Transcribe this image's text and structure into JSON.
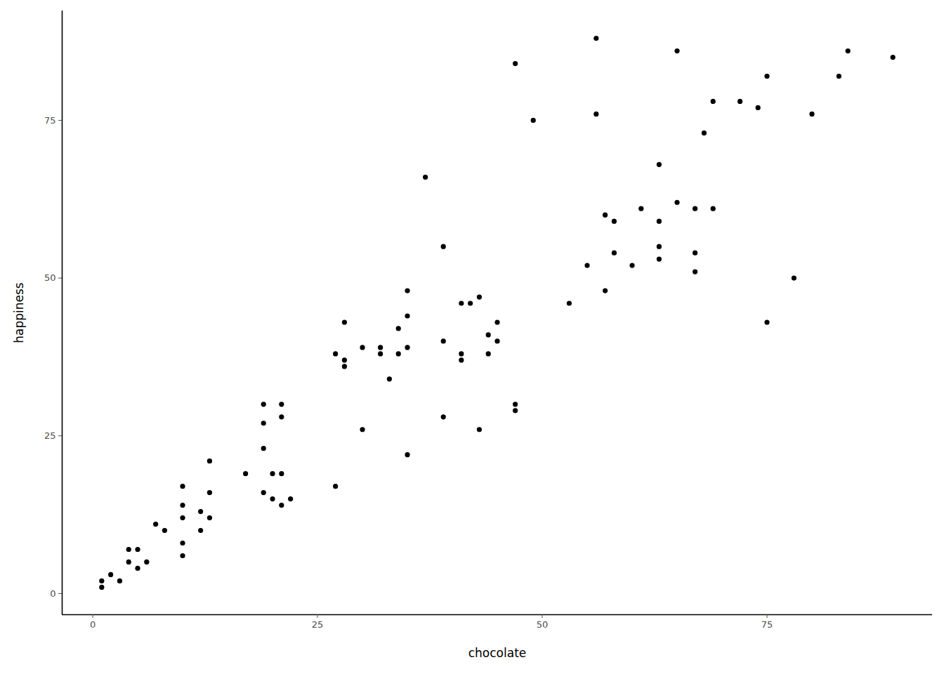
{
  "chart_data": {
    "type": "scatter",
    "xlabel": "chocolate",
    "ylabel": "happiness",
    "color": "#000000",
    "x": [
      1,
      1,
      2,
      3,
      4,
      4,
      5,
      5,
      6,
      7,
      8,
      10,
      10,
      10,
      10,
      10,
      12,
      12,
      13,
      13,
      13,
      17,
      19,
      19,
      19,
      19,
      20,
      20,
      21,
      21,
      21,
      21,
      22,
      27,
      27,
      28,
      28,
      28,
      30,
      30,
      32,
      32,
      33,
      34,
      34,
      35,
      35,
      35,
      35,
      37,
      39,
      39,
      39,
      41,
      41,
      41,
      42,
      43,
      43,
      44,
      44,
      45,
      45,
      47,
      47,
      47,
      49,
      53,
      55,
      56,
      56,
      57,
      57,
      58,
      58,
      60,
      61,
      63,
      63,
      63,
      63,
      65,
      65,
      67,
      67,
      67,
      68,
      69,
      69,
      72,
      74,
      75,
      75,
      78,
      80,
      83,
      84,
      89
    ],
    "values": [
      1,
      2,
      3,
      2,
      7,
      5,
      7,
      4,
      5,
      11,
      10,
      17,
      14,
      12,
      8,
      6,
      13,
      10,
      21,
      16,
      12,
      19,
      30,
      27,
      23,
      16,
      19,
      15,
      30,
      28,
      19,
      14,
      15,
      38,
      17,
      43,
      37,
      36,
      39,
      26,
      39,
      38,
      34,
      42,
      38,
      48,
      44,
      39,
      22,
      66,
      55,
      40,
      28,
      46,
      38,
      37,
      46,
      47,
      26,
      41,
      38,
      43,
      40,
      84,
      30,
      29,
      75,
      46,
      52,
      88,
      76,
      60,
      48,
      59,
      54,
      52,
      61,
      68,
      59,
      55,
      53,
      86,
      62,
      61,
      54,
      51,
      73,
      78,
      61,
      78,
      77,
      82,
      43,
      50,
      76,
      82,
      86,
      85
    ],
    "xlim": [
      -3.4,
      93.4
    ],
    "ylim": [
      -3.35,
      92.35
    ],
    "xticks": [
      0,
      25,
      50,
      75
    ],
    "yticks": [
      0,
      25,
      50,
      75
    ],
    "grid": false
  }
}
